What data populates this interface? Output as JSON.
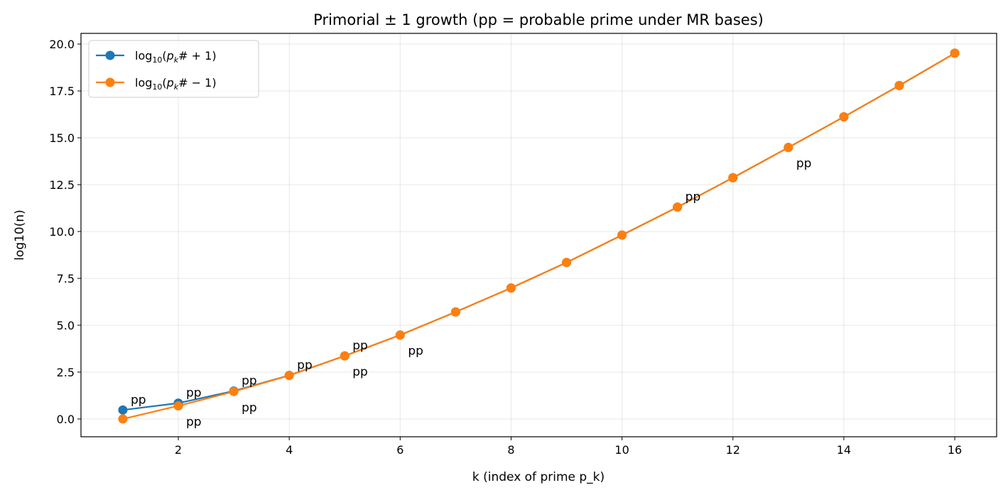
{
  "chart_data": {
    "type": "line",
    "title": "Primorial ± 1 growth (pp = probable prime under MR bases)",
    "xlabel": "k (index of prime p_k)",
    "ylabel": "log10(n)",
    "xlim": [
      0.245,
      16.755
    ],
    "ylim": [
      -0.95,
      20.57
    ],
    "xticks": [
      2,
      4,
      6,
      8,
      10,
      12,
      14,
      16
    ],
    "xtick_labels": [
      "2",
      "4",
      "6",
      "8",
      "10",
      "12",
      "14",
      "16"
    ],
    "yticks": [
      0,
      2.5,
      5,
      7.5,
      10,
      12.5,
      15,
      17.5,
      20
    ],
    "ytick_labels": [
      "0.0",
      "2.5",
      "5.0",
      "7.5",
      "10.0",
      "12.5",
      "15.0",
      "17.5",
      "20.0"
    ],
    "grid": true,
    "legend_position": "top-left",
    "annotation_text": "pp",
    "x": [
      1,
      2,
      3,
      4,
      5,
      6,
      7,
      8,
      9,
      10,
      11,
      12,
      13,
      14,
      15,
      16
    ],
    "series": [
      {
        "name": "log10(p_k# + 1)",
        "legend_main": "log",
        "legend_sub": "10",
        "legend_rest": "(p",
        "legend_k": "k",
        "legend_tail": "# + 1)",
        "color": "#1f77b4",
        "values": [
          0.477,
          0.845,
          1.491,
          2.324,
          3.364,
          4.478,
          5.708,
          6.987,
          8.348,
          9.811,
          11.302,
          12.87,
          14.483,
          16.117,
          17.789,
          19.513
        ],
        "pp": [
          1,
          2,
          3,
          4,
          5,
          11
        ],
        "pp_side": "above"
      },
      {
        "name": "log10(p_k# - 1)",
        "legend_main": "log",
        "legend_sub": "10",
        "legend_rest": "(p",
        "legend_k": "k",
        "legend_tail": "# − 1)",
        "color": "#ff7f0e",
        "values": [
          0,
          0.699,
          1.462,
          2.32,
          3.363,
          4.478,
          5.708,
          6.987,
          8.348,
          9.811,
          11.302,
          12.87,
          14.483,
          16.117,
          17.789,
          19.513
        ],
        "pp": [
          2,
          3,
          5,
          6,
          13
        ],
        "pp_side": "below"
      }
    ]
  }
}
